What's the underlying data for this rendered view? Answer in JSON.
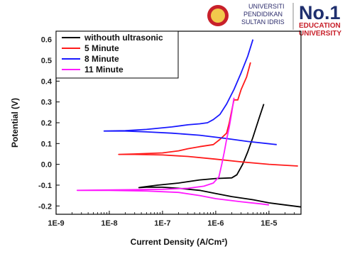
{
  "logo": {
    "university_lines": [
      "UNIVERSITI",
      "PENDIDIKAN",
      "SULTAN IDRIS"
    ],
    "rank": "No.1",
    "rank_lines": [
      "EDUCATION",
      "UNIVERSITY"
    ],
    "colors": {
      "crest": "#c8202a",
      "navy": "#1f2f6e",
      "red": "#c8202a"
    }
  },
  "chart_data": {
    "type": "line",
    "xlabel": "Current Density (A/Cm²)",
    "ylabel": "Potential (V)",
    "x_scale": "log",
    "xlim": [
      1e-09,
      4e-05
    ],
    "ylim": [
      -0.24,
      0.64
    ],
    "x_ticks": [
      1e-09,
      1e-08,
      1e-07,
      1e-06,
      1e-05
    ],
    "x_tick_labels": [
      "1E-9",
      "1E-8",
      "1E-7",
      "1E-6",
      "1E-5"
    ],
    "y_ticks": [
      -0.2,
      -0.1,
      0.0,
      0.1,
      0.2,
      0.3,
      0.4,
      0.5,
      0.6
    ],
    "y_tick_labels": [
      "-0.2",
      "-0.1",
      "0.0",
      "0.1",
      "0.2",
      "0.3",
      "0.4",
      "0.5",
      "0.6"
    ],
    "grid": false,
    "legend_position": "top-left",
    "series": [
      {
        "name": "withouth ultrasonic",
        "color": "#000000",
        "points": [
          [
            8e-06,
            0.29
          ],
          [
            6.5e-06,
            0.22
          ],
          [
            5e-06,
            0.13
          ],
          [
            4e-06,
            0.06
          ],
          [
            3.2e-06,
            0.0
          ],
          [
            2.5e-06,
            -0.05
          ],
          [
            2e-06,
            -0.065
          ],
          [
            1e-06,
            -0.068
          ],
          [
            5e-07,
            -0.075
          ],
          [
            2e-07,
            -0.09
          ],
          [
            8e-08,
            -0.1
          ],
          [
            4e-08,
            -0.11
          ],
          [
            3.6e-08,
            -0.112
          ],
          [
            5e-08,
            -0.11
          ],
          [
            1e-07,
            -0.11
          ],
          [
            2e-07,
            -0.115
          ],
          [
            5e-07,
            -0.125
          ],
          [
            1e-06,
            -0.14
          ],
          [
            2e-06,
            -0.155
          ],
          [
            5e-06,
            -0.17
          ],
          [
            1e-05,
            -0.185
          ],
          [
            2e-05,
            -0.195
          ],
          [
            4e-05,
            -0.205
          ]
        ]
      },
      {
        "name": "5 Minute",
        "color": "#ff1a1a",
        "points": [
          [
            4.5e-06,
            0.49
          ],
          [
            3.8e-06,
            0.42
          ],
          [
            3e-06,
            0.36
          ],
          [
            2.6e-06,
            0.31
          ],
          [
            2.2e-06,
            0.31
          ],
          [
            2e-06,
            0.26
          ],
          [
            1.8e-06,
            0.2
          ],
          [
            1.6e-06,
            0.15
          ],
          [
            1.2e-06,
            0.12
          ],
          [
            9e-07,
            0.095
          ],
          [
            5e-07,
            0.085
          ],
          [
            3e-07,
            0.075
          ],
          [
            2e-07,
            0.065
          ],
          [
            1e-07,
            0.055
          ],
          [
            3e-08,
            0.05
          ],
          [
            1.5e-08,
            0.048
          ],
          [
            3e-08,
            0.048
          ],
          [
            1e-07,
            0.045
          ],
          [
            3e-07,
            0.038
          ],
          [
            1e-06,
            0.025
          ],
          [
            3e-06,
            0.012
          ],
          [
            1e-05,
            0.0
          ],
          [
            3.5e-05,
            -0.008
          ]
        ]
      },
      {
        "name": "8 Minute",
        "color": "#1a1aff",
        "points": [
          [
            5e-06,
            0.6
          ],
          [
            4e-06,
            0.52
          ],
          [
            3e-06,
            0.44
          ],
          [
            2.2e-06,
            0.36
          ],
          [
            1.6e-06,
            0.29
          ],
          [
            1.2e-06,
            0.24
          ],
          [
            9e-07,
            0.215
          ],
          [
            7e-07,
            0.2
          ],
          [
            5e-07,
            0.195
          ],
          [
            3e-07,
            0.19
          ],
          [
            1.5e-07,
            0.18
          ],
          [
            5e-08,
            0.168
          ],
          [
            2e-08,
            0.162
          ],
          [
            8e-09,
            0.16
          ],
          [
            2e-08,
            0.16
          ],
          [
            5e-08,
            0.156
          ],
          [
            1.5e-07,
            0.15
          ],
          [
            5e-07,
            0.14
          ],
          [
            1.5e-06,
            0.125
          ],
          [
            4e-06,
            0.11
          ],
          [
            1.4e-05,
            0.095
          ]
        ]
      },
      {
        "name": "11 Minute",
        "color": "#ff1aff",
        "points": [
          [
            2.2e-06,
            0.32
          ],
          [
            2e-06,
            0.25
          ],
          [
            1.8e-06,
            0.18
          ],
          [
            1.6e-06,
            0.12
          ],
          [
            1.45e-06,
            0.06
          ],
          [
            1.3e-06,
            0.0
          ],
          [
            1.15e-06,
            -0.06
          ],
          [
            9e-07,
            -0.09
          ],
          [
            6e-07,
            -0.105
          ],
          [
            3e-07,
            -0.115
          ],
          [
            1e-07,
            -0.12
          ],
          [
            2.5e-08,
            -0.122
          ],
          [
            2.5e-09,
            -0.125
          ],
          [
            1e-08,
            -0.125
          ],
          [
            5e-08,
            -0.128
          ],
          [
            2e-07,
            -0.135
          ],
          [
            5e-07,
            -0.15
          ],
          [
            1e-06,
            -0.165
          ],
          [
            3e-06,
            -0.18
          ],
          [
            7e-06,
            -0.19
          ],
          [
            1e-05,
            -0.195
          ]
        ]
      }
    ]
  }
}
